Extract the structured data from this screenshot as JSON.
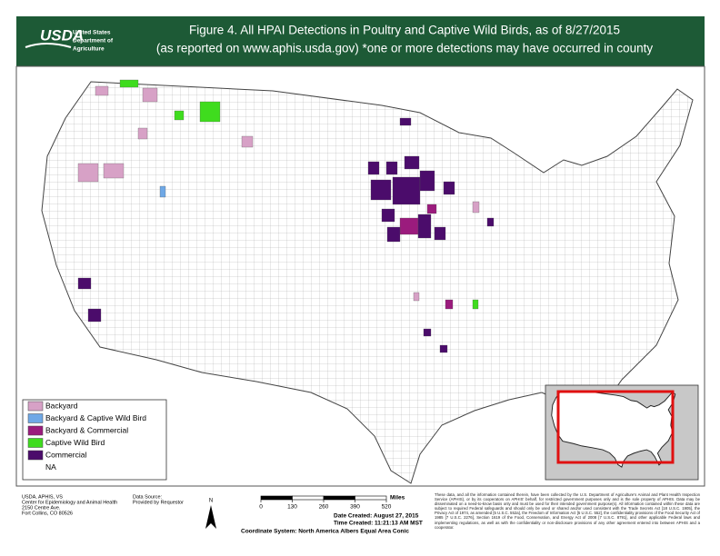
{
  "header": {
    "logo": "USDA",
    "agency": [
      "United States",
      "Department of",
      "Agriculture"
    ],
    "title": "Figure 4. All HPAI Detections in Poultry and Captive Wild Birds, as of 8/27/2015",
    "subtitle": "(as reported on www.aphis.usda.gov) *one or more detections may have occurred in county"
  },
  "legend": [
    {
      "label": "Backyard",
      "color": "#d7a1c6"
    },
    {
      "label": "Backyard & Captive Wild Bird",
      "color": "#6fa8e6"
    },
    {
      "label": "Backyard & Commercial",
      "color": "#9b1b7d"
    },
    {
      "label": "Captive Wild Bird",
      "color": "#3fdc1e"
    },
    {
      "label": "Commercial",
      "color": "#4b0c6b"
    },
    {
      "label": "NA",
      "color": "#ffffff"
    }
  ],
  "footer": {
    "credits": [
      "USDA, APHIS, VS",
      "Center for Epidemiology and Animal Health",
      "2150 Centre Ave.",
      "Fort Collins, CO   80526"
    ],
    "source_label": "Data Source:",
    "source": "Provided by Requestor",
    "north": "N",
    "scale": {
      "unit": "Miles",
      "ticks": [
        0,
        130,
        260,
        390,
        520
      ]
    },
    "date_created": "Date Created: August 27, 2015",
    "time_created": "Time Created:  11:21:13 AM MST",
    "coordinate_system": "Coordinate System: North America Albers Equal Area Conic",
    "disclaimer": "These data, and all the information contained therein, have been collected by the U.S. Department of Agriculture's Animal and Plant Health Inspection Service (APHIS), or by its cooperators on APHIS' behalf, for restricted government purposes only and is the sole property of APHIS. Data may be disseminated on a need-to-know basis only and must be used for their intended government purpose(s). All information contained within these data are subject to required Federal safeguards and should only be used or shared and/or used consistent with the Trade Secrets Act [18 U.S.C. 1905], the Privacy Act of 1974, as amended [5 U.S.C. 552a], the Freedom of Information Act [5 U.S.C. 552], the confidentiality provisions of the Food Security Act of 1985 [7 U.S.C. 2276], Section 1619 of the Food, Conservation, and Energy Act of 2008 [7 U.S.C. 8791], and other applicable Federal laws and implementing regulations, as well as with the confidentiality or non-disclosure provisions of any other agreement entered into between APHIS and a cooperator."
  }
}
